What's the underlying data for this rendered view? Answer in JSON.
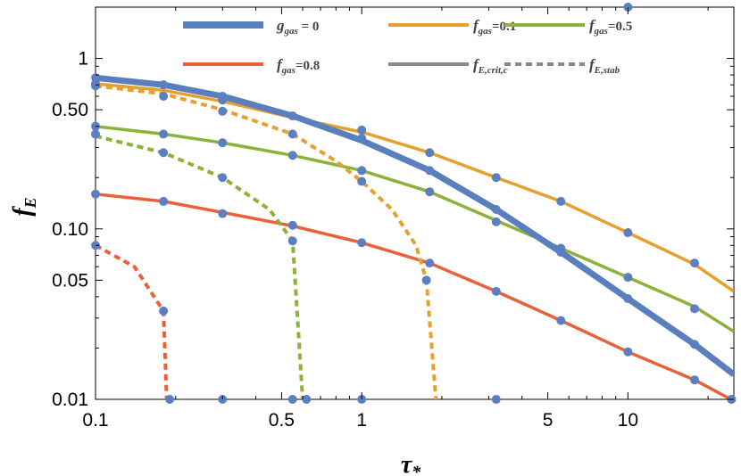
{
  "chart_data": {
    "type": "line",
    "title": "",
    "xlabel": "τ*",
    "ylabel": "fE",
    "xscale": "log",
    "yscale": "log",
    "xlim": [
      0.1,
      25
    ],
    "ylim": [
      0.01,
      2
    ],
    "x_ticks": [
      {
        "value": 0.1,
        "label": "0.1"
      },
      {
        "value": 0.5,
        "label": "0.5"
      },
      {
        "value": 1,
        "label": "1"
      },
      {
        "value": 5,
        "label": "5"
      },
      {
        "value": 10,
        "label": "10"
      }
    ],
    "y_ticks": [
      {
        "value": 0.01,
        "label": "0.01"
      },
      {
        "value": 0.05,
        "label": "0.05"
      },
      {
        "value": 0.1,
        "label": "0.10"
      },
      {
        "value": 0.5,
        "label": "0.50"
      },
      {
        "value": 1,
        "label": "1"
      }
    ],
    "legend": [
      {
        "label": "g_gas = 0",
        "main": "g",
        "sub": "gas",
        "tail": " = 0",
        "color": "#5a7fbd",
        "style": "solid-thick"
      },
      {
        "label": "f_gas=0.1",
        "main": "f",
        "sub": "gas",
        "tail": "=0.1",
        "color": "#e5a02d",
        "style": "solid"
      },
      {
        "label": "f_gas=0.5",
        "main": "f",
        "sub": "gas",
        "tail": "=0.5",
        "color": "#8db23a",
        "style": "solid"
      },
      {
        "label": "f_gas=0.8",
        "main": "f",
        "sub": "gas",
        "tail": "=0.8",
        "color": "#e8613a",
        "style": "solid"
      },
      {
        "label": "f_E,crit,c",
        "main": "f",
        "sub": "E,crit,c",
        "tail": "",
        "color": "#888888",
        "style": "solid"
      },
      {
        "label": "f_E,stab",
        "main": "f",
        "sub": "E,stab",
        "tail": "",
        "color": "#888888",
        "style": "dashed"
      }
    ],
    "marker_color": "#5b7fc0",
    "series": [
      {
        "name": "fgas=0.1 crit",
        "color": "#e5a02d",
        "style": "solid",
        "width": 3.5,
        "points": [
          [
            0.1,
            0.71
          ],
          [
            0.18,
            0.65
          ],
          [
            0.3,
            0.56
          ],
          [
            0.55,
            0.45
          ],
          [
            1,
            0.37
          ],
          [
            1.8,
            0.28
          ],
          [
            3.2,
            0.2
          ],
          [
            5.6,
            0.145
          ],
          [
            10,
            0.095
          ],
          [
            17.8,
            0.062
          ],
          [
            25,
            0.043
          ]
        ],
        "markers": [
          [
            0.1,
            0.71
          ],
          [
            0.18,
            0.6
          ],
          [
            0.3,
            0.57
          ],
          [
            1,
            0.38
          ],
          [
            1.8,
            0.28
          ],
          [
            3.2,
            0.2
          ],
          [
            5.6,
            0.145
          ],
          [
            10,
            0.095
          ],
          [
            17.8,
            0.063
          ]
        ]
      },
      {
        "name": "fgas=0.5 crit",
        "color": "#8db23a",
        "style": "solid",
        "width": 3.5,
        "points": [
          [
            0.1,
            0.4
          ],
          [
            0.18,
            0.36
          ],
          [
            0.3,
            0.32
          ],
          [
            0.55,
            0.27
          ],
          [
            1,
            0.22
          ],
          [
            1.8,
            0.165
          ],
          [
            3.2,
            0.112
          ],
          [
            5.6,
            0.077
          ],
          [
            10,
            0.052
          ],
          [
            17.8,
            0.035
          ],
          [
            25,
            0.025
          ]
        ],
        "markers": [
          [
            0.1,
            0.4
          ],
          [
            0.18,
            0.36
          ],
          [
            0.3,
            0.32
          ],
          [
            0.55,
            0.27
          ],
          [
            1,
            0.22
          ],
          [
            1.8,
            0.165
          ],
          [
            3.2,
            0.11
          ],
          [
            5.6,
            0.077
          ],
          [
            10,
            0.052
          ],
          [
            17.8,
            0.034
          ]
        ]
      },
      {
        "name": "fgas=0.8 crit",
        "color": "#e8613a",
        "style": "solid",
        "width": 3.5,
        "points": [
          [
            0.1,
            0.16
          ],
          [
            0.18,
            0.145
          ],
          [
            0.3,
            0.125
          ],
          [
            0.55,
            0.104
          ],
          [
            1,
            0.083
          ],
          [
            1.8,
            0.063
          ],
          [
            3.2,
            0.043
          ],
          [
            5.6,
            0.029
          ],
          [
            10,
            0.019
          ],
          [
            17.8,
            0.013
          ],
          [
            25,
            0.0098
          ]
        ],
        "markers": [
          [
            0.1,
            0.16
          ],
          [
            0.18,
            0.145
          ],
          [
            0.3,
            0.123
          ],
          [
            0.55,
            0.105
          ],
          [
            1,
            0.083
          ],
          [
            1.8,
            0.063
          ],
          [
            3.2,
            0.043
          ],
          [
            5.6,
            0.029
          ],
          [
            10,
            0.019
          ],
          [
            17.8,
            0.013
          ],
          [
            24.5,
            0.01
          ]
        ]
      },
      {
        "name": "fgas=0.1 stab",
        "color": "#e5a02d",
        "style": "dashed",
        "width": 4,
        "points": [
          [
            0.1,
            0.69
          ],
          [
            0.18,
            0.62
          ],
          [
            0.3,
            0.5
          ],
          [
            0.55,
            0.36
          ],
          [
            0.8,
            0.25
          ],
          [
            1,
            0.19
          ],
          [
            1.3,
            0.13
          ],
          [
            1.6,
            0.08
          ],
          [
            1.75,
            0.05
          ],
          [
            1.9,
            0.01
          ]
        ],
        "markers": [
          [
            0.1,
            0.69
          ],
          [
            0.3,
            0.49
          ],
          [
            0.55,
            0.36
          ],
          [
            1,
            0.19
          ],
          [
            1.75,
            0.05
          ]
        ]
      },
      {
        "name": "fgas=0.5 stab",
        "color": "#8db23a",
        "style": "dashed",
        "width": 4,
        "points": [
          [
            0.1,
            0.35
          ],
          [
            0.18,
            0.28
          ],
          [
            0.3,
            0.2
          ],
          [
            0.45,
            0.13
          ],
          [
            0.55,
            0.085
          ],
          [
            0.6,
            0.01
          ]
        ],
        "markers": [
          [
            0.1,
            0.36
          ],
          [
            0.18,
            0.28
          ],
          [
            0.3,
            0.2
          ],
          [
            0.55,
            0.085
          ],
          [
            0.62,
            0.01
          ]
        ]
      },
      {
        "name": "fgas=0.8 stab",
        "color": "#e8613a",
        "style": "dashed",
        "width": 4,
        "points": [
          [
            0.1,
            0.08
          ],
          [
            0.14,
            0.06
          ],
          [
            0.18,
            0.033
          ],
          [
            0.185,
            0.01
          ]
        ],
        "markers": [
          [
            0.1,
            0.08
          ],
          [
            0.18,
            0.033
          ],
          [
            0.19,
            0.01
          ]
        ]
      },
      {
        "name": "ggas=0 crit",
        "color": "#5a7fbd",
        "style": "solid",
        "width": 7,
        "points": [
          [
            0.1,
            0.77
          ],
          [
            0.18,
            0.7
          ],
          [
            0.3,
            0.6
          ],
          [
            0.55,
            0.46
          ],
          [
            1,
            0.33
          ],
          [
            1.8,
            0.22
          ],
          [
            3.2,
            0.13
          ],
          [
            5.6,
            0.073
          ],
          [
            10,
            0.039
          ],
          [
            17.8,
            0.021
          ],
          [
            25,
            0.014
          ]
        ],
        "markers": [
          [
            0.1,
            0.77
          ],
          [
            0.18,
            0.7
          ],
          [
            0.3,
            0.6
          ],
          [
            0.55,
            0.46
          ],
          [
            1,
            0.34
          ],
          [
            1.8,
            0.22
          ],
          [
            3.2,
            0.13
          ],
          [
            5.6,
            0.073
          ],
          [
            10,
            0.039
          ],
          [
            17.8,
            0.021
          ],
          [
            24.5,
            0.01
          ]
        ]
      }
    ],
    "baseline_markers": [
      [
        0.3,
        0.01
      ],
      [
        0.55,
        0.01
      ],
      [
        1,
        0.01
      ],
      [
        3.2,
        0.01
      ]
    ],
    "offscale_markers": [
      [
        10,
        2
      ]
    ]
  }
}
